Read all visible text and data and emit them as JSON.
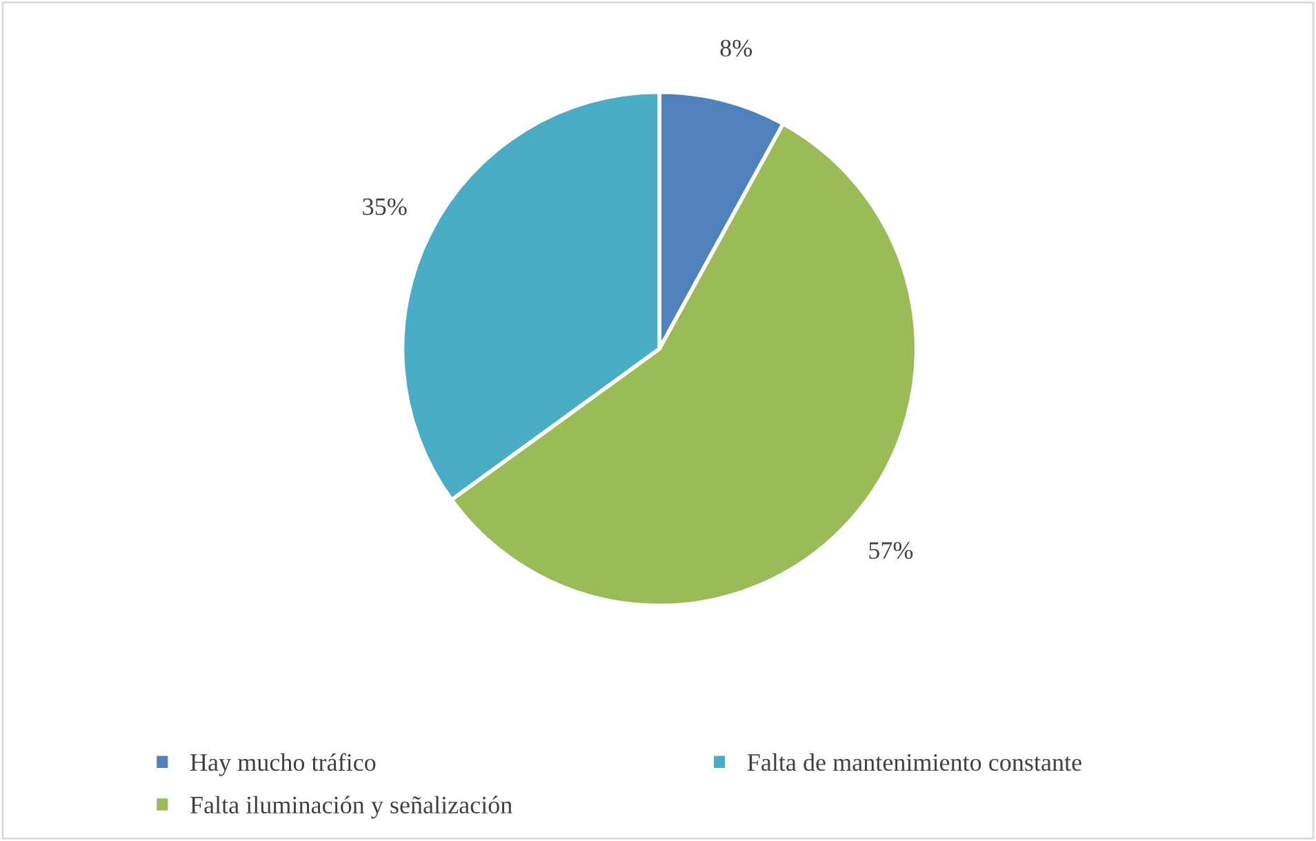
{
  "chart_data": {
    "type": "pie",
    "categories": [
      "Hay mucho tráfico",
      "Falta iluminación y señalización",
      "Falta de mantenimiento constante"
    ],
    "values": [
      8,
      57,
      35
    ],
    "colors": [
      "#4f81bd",
      "#9bbb59",
      "#4bacc6"
    ],
    "value_labels": [
      "8%",
      "57%",
      "35%"
    ],
    "legend": "bottom"
  }
}
